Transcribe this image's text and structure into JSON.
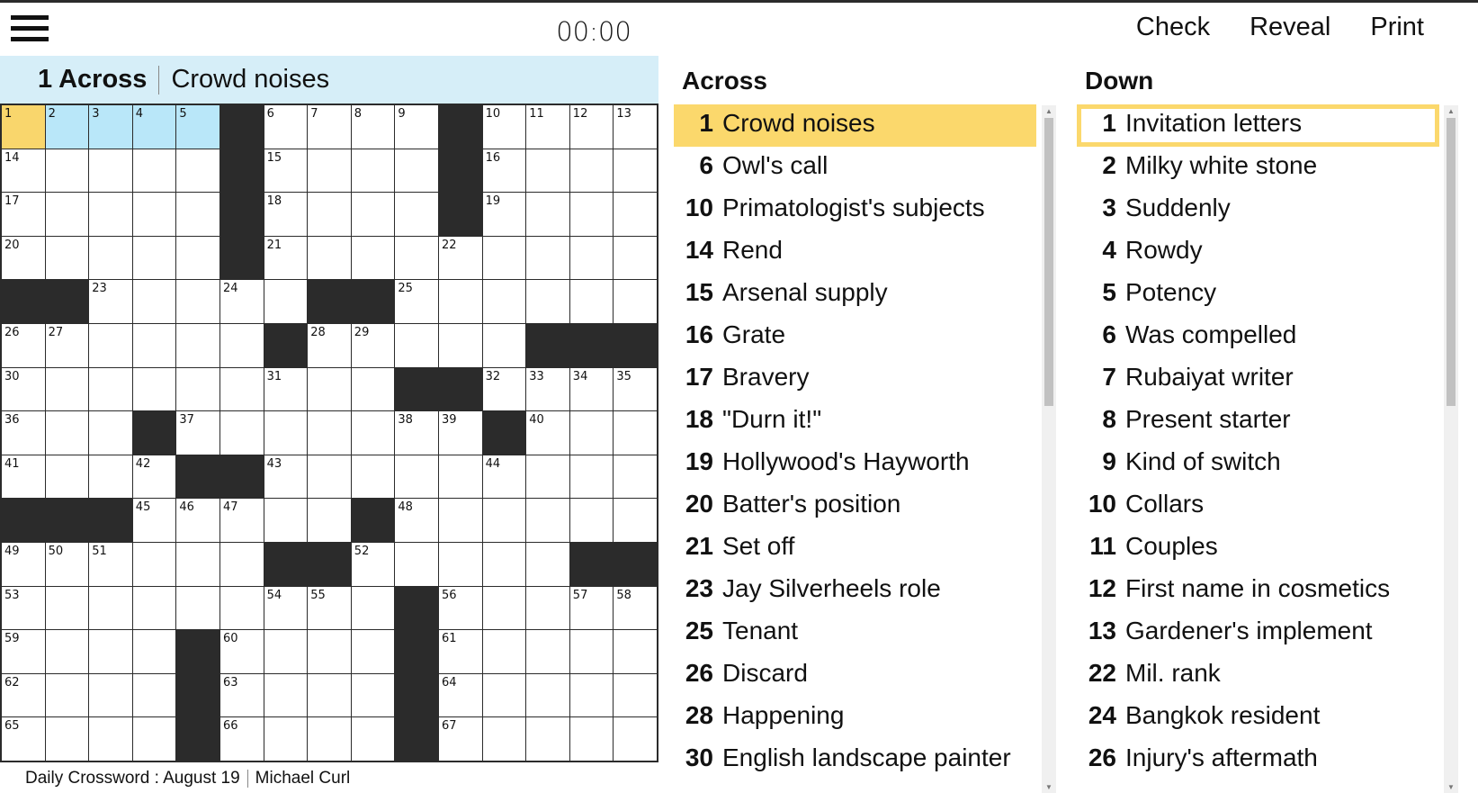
{
  "timer": "00:00",
  "toolbar": {
    "check": "Check",
    "reveal": "Reveal",
    "print": "Print"
  },
  "current_clue": {
    "label": "1 Across",
    "text": "Crowd noises"
  },
  "footer": {
    "title": "Daily Crossword : August 19",
    "author": "Michael Curl"
  },
  "colors": {
    "selected": "#f9d66c",
    "word": "#b9e7f9",
    "clue_bar": "#d6eef8",
    "block": "#2b2b2b"
  },
  "grid": [
    [
      "1",
      "2",
      "3",
      "4",
      "5",
      "#",
      "6",
      "7",
      "8",
      "9",
      "#",
      "10",
      "11",
      "12",
      "13"
    ],
    [
      "14",
      "",
      "",
      "",
      "",
      "#",
      "15",
      "",
      "",
      "",
      "#",
      "16",
      "",
      "",
      ""
    ],
    [
      "17",
      "",
      "",
      "",
      "",
      "#",
      "18",
      "",
      "",
      "",
      "#",
      "19",
      "",
      "",
      ""
    ],
    [
      "20",
      "",
      "",
      "",
      "",
      "#",
      "21",
      "",
      "",
      "",
      "22",
      "",
      "",
      "",
      ""
    ],
    [
      "#",
      "#",
      "23",
      "",
      "",
      "24",
      "",
      "#",
      "#",
      "25",
      "",
      "",
      "",
      "",
      ""
    ],
    [
      "26",
      "27",
      "",
      "",
      "",
      "",
      "#",
      "28",
      "29",
      "",
      "",
      "",
      "#",
      "#",
      "#"
    ],
    [
      "30",
      "",
      "",
      "",
      "",
      "",
      "31",
      "",
      "",
      "#",
      "#",
      "32",
      "33",
      "34",
      "35"
    ],
    [
      "36",
      "",
      "",
      "#",
      "37",
      "",
      "",
      "",
      "",
      "38",
      "39",
      "#",
      "40",
      "",
      ""
    ],
    [
      "41",
      "",
      "",
      "42",
      "#",
      "#",
      "43",
      "",
      "",
      "",
      "",
      "44",
      "",
      "",
      ""
    ],
    [
      "#",
      "#",
      "#",
      "45",
      "46",
      "47",
      "",
      "",
      "#",
      "48",
      "",
      "",
      "",
      "",
      ""
    ],
    [
      "49",
      "50",
      "51",
      "",
      "",
      "",
      "#",
      "#",
      "52",
      "",
      "",
      "",
      "",
      "#",
      "#"
    ],
    [
      "53",
      "",
      "",
      "",
      "",
      "",
      "54",
      "55",
      "",
      "#",
      "56",
      "",
      "",
      "57",
      "58"
    ],
    [
      "59",
      "",
      "",
      "",
      "#",
      "60",
      "",
      "",
      "",
      "#",
      "61",
      "",
      "",
      "",
      ""
    ],
    [
      "62",
      "",
      "",
      "",
      "#",
      "63",
      "",
      "",
      "",
      "#",
      "64",
      "",
      "",
      "",
      ""
    ],
    [
      "65",
      "",
      "",
      "",
      "#",
      "66",
      "",
      "",
      "",
      "#",
      "67",
      "",
      "",
      "",
      ""
    ]
  ],
  "across": {
    "title": "Across",
    "clues": [
      {
        "n": "1",
        "t": "Crowd noises"
      },
      {
        "n": "6",
        "t": "Owl's call"
      },
      {
        "n": "10",
        "t": "Primatologist's subjects"
      },
      {
        "n": "14",
        "t": "Rend"
      },
      {
        "n": "15",
        "t": "Arsenal supply"
      },
      {
        "n": "16",
        "t": "Grate"
      },
      {
        "n": "17",
        "t": "Bravery"
      },
      {
        "n": "18",
        "t": "\"Durn it!\""
      },
      {
        "n": "19",
        "t": "Hollywood's Hayworth"
      },
      {
        "n": "20",
        "t": "Batter's position"
      },
      {
        "n": "21",
        "t": "Set off"
      },
      {
        "n": "23",
        "t": "Jay Silverheels role"
      },
      {
        "n": "25",
        "t": "Tenant"
      },
      {
        "n": "26",
        "t": "Discard"
      },
      {
        "n": "28",
        "t": "Happening"
      },
      {
        "n": "30",
        "t": "English landscape painter"
      }
    ]
  },
  "down": {
    "title": "Down",
    "clues": [
      {
        "n": "1",
        "t": "Invitation letters"
      },
      {
        "n": "2",
        "t": "Milky white stone"
      },
      {
        "n": "3",
        "t": "Suddenly"
      },
      {
        "n": "4",
        "t": "Rowdy"
      },
      {
        "n": "5",
        "t": "Potency"
      },
      {
        "n": "6",
        "t": "Was compelled"
      },
      {
        "n": "7",
        "t": "Rubaiyat writer"
      },
      {
        "n": "8",
        "t": "Present starter"
      },
      {
        "n": "9",
        "t": "Kind of switch"
      },
      {
        "n": "10",
        "t": "Collars"
      },
      {
        "n": "11",
        "t": "Couples"
      },
      {
        "n": "12",
        "t": "First name in cosmetics"
      },
      {
        "n": "13",
        "t": "Gardener's implement"
      },
      {
        "n": "22",
        "t": "Mil. rank"
      },
      {
        "n": "24",
        "t": "Bangkok resident"
      },
      {
        "n": "26",
        "t": "Injury's aftermath"
      }
    ]
  }
}
